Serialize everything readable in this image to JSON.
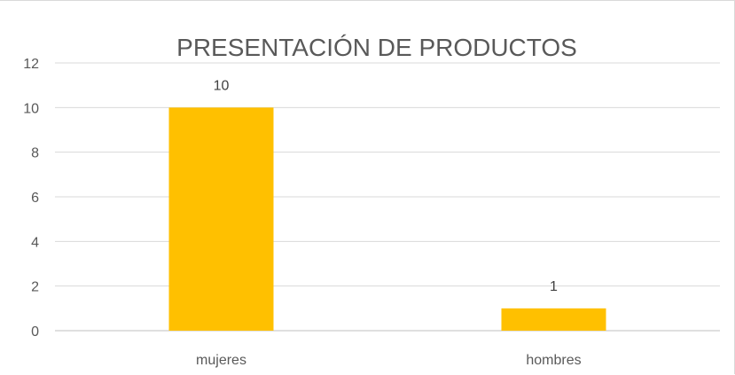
{
  "chart_data": {
    "type": "bar",
    "title": "PRESENTACIÓN DE PRODUCTOS",
    "categories": [
      "mujeres",
      "hombres"
    ],
    "values": [
      10,
      1
    ],
    "data_labels": [
      "10",
      "1"
    ],
    "ylim": [
      0,
      12
    ],
    "yticks": [
      0,
      2,
      4,
      6,
      8,
      10,
      12
    ],
    "ytick_labels": [
      "0",
      "2",
      "4",
      "6",
      "8",
      "10",
      "12"
    ],
    "xlabel": "",
    "ylabel": "",
    "grid": true,
    "legend": "none",
    "colors": {
      "bar": "#FFC000",
      "grid": "#d9d9d9",
      "axis": "#bfbfbf",
      "text": "#595959"
    }
  }
}
